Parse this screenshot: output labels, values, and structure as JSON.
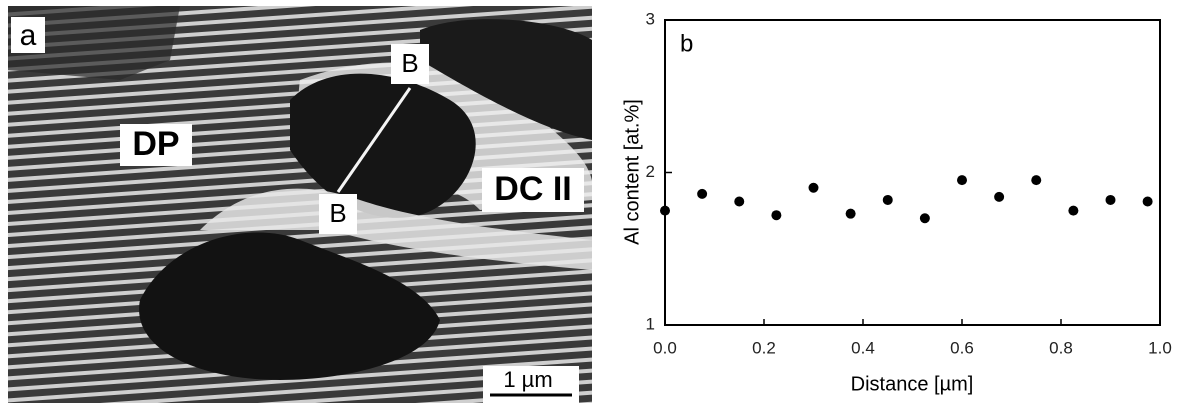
{
  "micrograph": {
    "panel_label": "a",
    "labels": [
      "DP",
      "DC II"
    ],
    "line_ends": [
      "B",
      "B"
    ],
    "scale_bar": "1 µm"
  },
  "chart_data": {
    "type": "scatter",
    "annotation": "b",
    "x_label": "Distance [µm]",
    "y_label": "Al content [at.%]",
    "x": [
      0.0,
      0.075,
      0.15,
      0.225,
      0.3,
      0.375,
      0.45,
      0.525,
      0.6,
      0.675,
      0.75,
      0.825,
      0.9,
      0.975
    ],
    "values": [
      1.75,
      1.86,
      1.81,
      1.72,
      1.9,
      1.73,
      1.82,
      1.7,
      1.95,
      1.84,
      1.95,
      1.75,
      1.82,
      1.81
    ],
    "color": "#000000",
    "xlim": [
      0,
      1
    ],
    "xticks": [
      {
        "value": 0,
        "label": "0.0"
      },
      0.2,
      0.4,
      0.6,
      0.8,
      {
        "value": 1,
        "label": "1.0"
      }
    ],
    "ylim": [
      1,
      3
    ],
    "yticks": [
      1,
      2,
      3
    ]
  }
}
